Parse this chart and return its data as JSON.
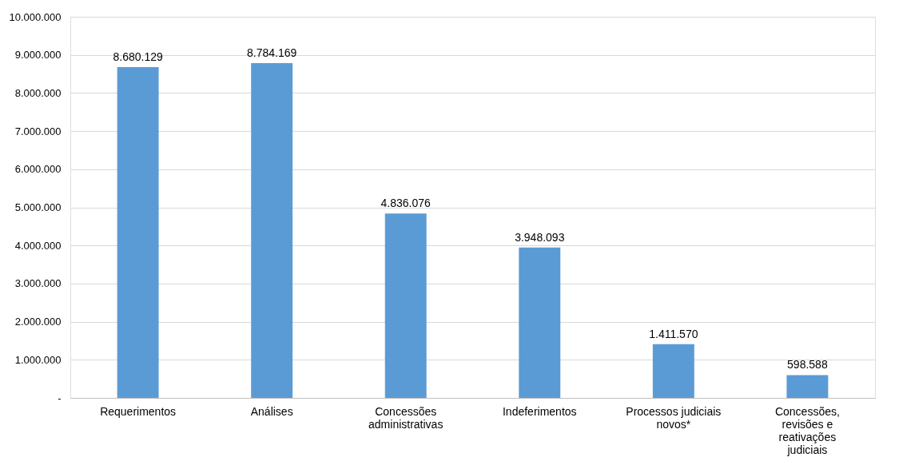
{
  "chart_data": {
    "type": "bar",
    "categories": [
      "Requerimentos",
      "Análises",
      "Concessões administrativas",
      "Indeferimentos",
      "Processos judiciais novos*",
      "Concessões, revisões e reativações judiciais"
    ],
    "values": [
      8680129,
      8784169,
      4836076,
      3948093,
      1411570,
      598588
    ],
    "value_labels": [
      "8.680.129",
      "8.784.169",
      "4.836.076",
      "3.948.093",
      "1.411.570",
      "598.588"
    ],
    "color": "#5b9bd5",
    "ylim": [
      0,
      10000000
    ],
    "yticks": [
      {
        "value": 0,
        "label": "-"
      },
      {
        "value": 1000000,
        "label": "1.000.000"
      },
      {
        "value": 2000000,
        "label": "2.000.000"
      },
      {
        "value": 3000000,
        "label": "3.000.000"
      },
      {
        "value": 4000000,
        "label": "4.000.000"
      },
      {
        "value": 5000000,
        "label": "5.000.000"
      },
      {
        "value": 6000000,
        "label": "6.000.000"
      },
      {
        "value": 7000000,
        "label": "7.000.000"
      },
      {
        "value": 8000000,
        "label": "8.000.000"
      },
      {
        "value": 9000000,
        "label": "9.000.000"
      },
      {
        "value": 10000000,
        "label": "10.000.000"
      }
    ],
    "grid": "y"
  }
}
